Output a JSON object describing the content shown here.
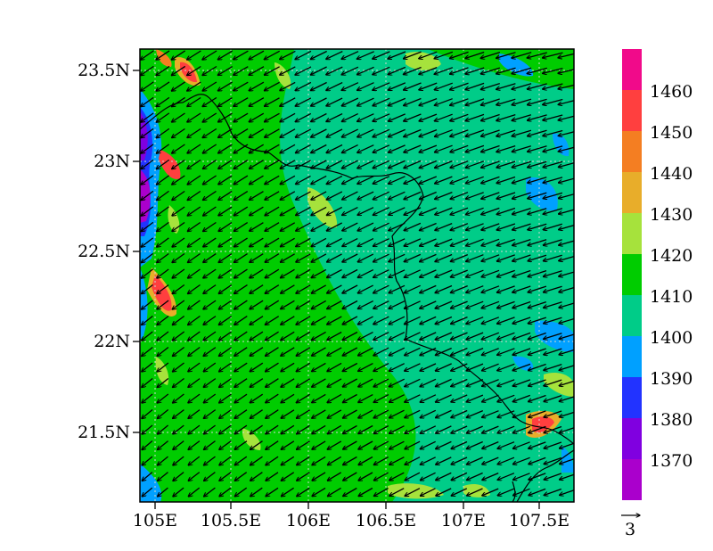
{
  "map": {
    "y_ticks": [
      "23.5N",
      "23N",
      "22.5N",
      "22N",
      "21.5N"
    ],
    "x_ticks": [
      "105E",
      "105.5E",
      "106E",
      "106.5E",
      "107E",
      "107.5E"
    ],
    "wind_reference_label": "3",
    "wind_direction": "from northeast (arrows pointing southwest)"
  },
  "colorbar": {
    "labels": [
      "1460",
      "1450",
      "1440",
      "1430",
      "1420",
      "1410",
      "1400",
      "1390",
      "1380",
      "1370"
    ],
    "colors": [
      "#f10a8a",
      "#ff3f3f",
      "#f47e22",
      "#e8ad2a",
      "#a6e23c",
      "#00cc00",
      "#00cc88",
      "#00a0ff",
      "#2233ff",
      "#8000e0",
      "#aa00cc"
    ]
  },
  "palette": {
    "dominant_low": "#00cc88",
    "dominant_mid": "#00cc00",
    "light_green": "#a6e23c",
    "blue": "#00a0ff",
    "purple": "#8000e0",
    "red": "#ff3f3f",
    "orange": "#e8ad2a"
  }
}
